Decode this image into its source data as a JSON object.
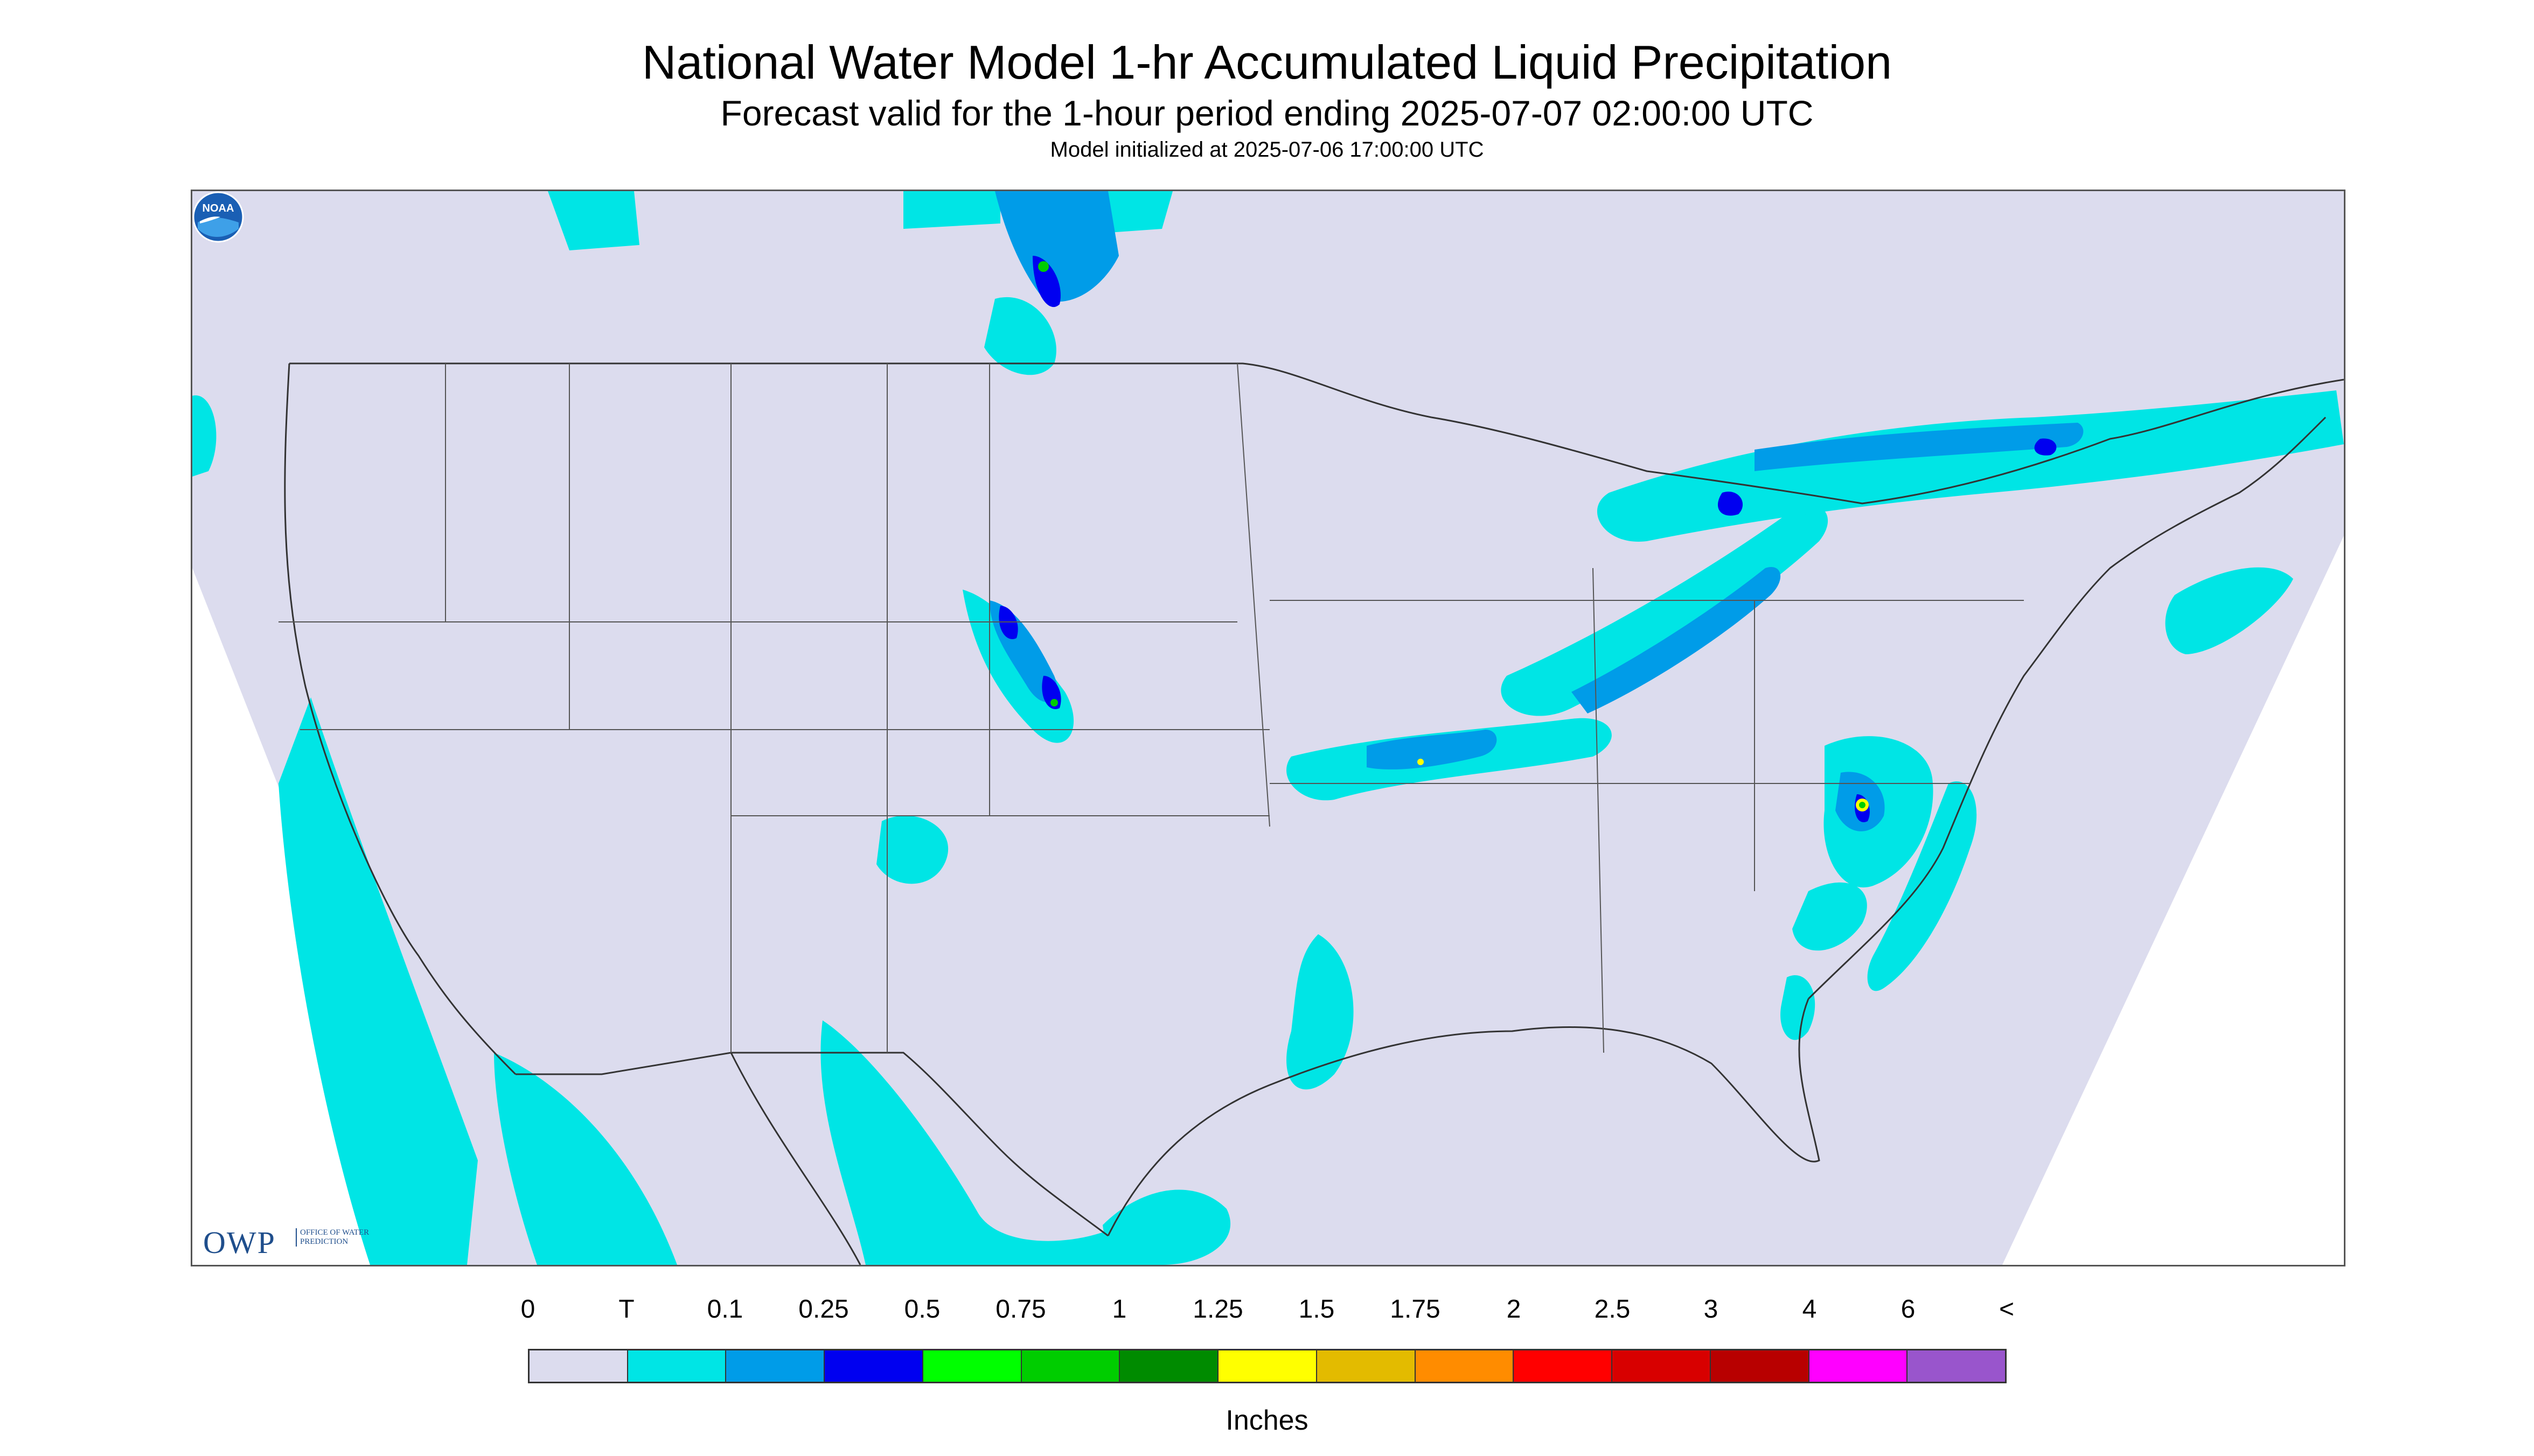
{
  "title": "National Water Model 1-hr Accumulated Liquid Precipitation",
  "subtitle": "Forecast valid for the 1-hour period ending 2025-07-07 02:00:00 UTC",
  "init_text": "Model initialized at 2025-07-06 17:00:00 UTC",
  "logos": {
    "owp_mark": "OWP",
    "owp_subtext": "OFFICE OF WATER PREDICTION",
    "noaa": "NOAA"
  },
  "legend": {
    "labels": [
      "0",
      "T",
      "0.1",
      "0.25",
      "0.5",
      "0.75",
      "1",
      "1.25",
      "1.5",
      "1.75",
      "2",
      "2.5",
      "3",
      "4",
      "6",
      "<"
    ],
    "colors": [
      "#dcdcee",
      "#00e5e5",
      "#009ce8",
      "#0000f0",
      "#00ff00",
      "#00cd00",
      "#008b00",
      "#ffff00",
      "#e3bb00",
      "#ff8c00",
      "#ff0000",
      "#d80000",
      "#b80000",
      "#ff00ff",
      "#9955cc"
    ],
    "units": "Inches"
  },
  "colors": {
    "domain_fill": "#dcdcee",
    "trace": "#00e5e5",
    "light": "#009ce8",
    "moderate": "#0000f0",
    "heavy_green": "#00cd00",
    "heavy_yellow": "#ffff00",
    "boundary": "#333333"
  }
}
